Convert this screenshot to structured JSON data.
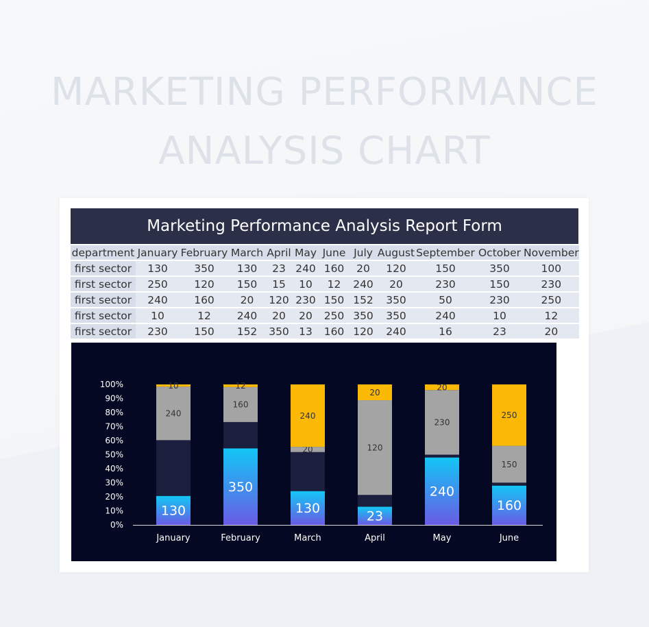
{
  "page_title_line1": "MARKETING PERFORMANCE",
  "page_title_line2": "ANALYSIS CHART",
  "report": {
    "title": "Marketing Performance Analysis Report Form",
    "columns": [
      "department",
      "January",
      "February",
      "March",
      "April",
      "May",
      "June",
      "July",
      "August",
      "September",
      "October",
      "November"
    ],
    "rows": [
      [
        "first sector",
        "130",
        "350",
        "130",
        "23",
        "240",
        "160",
        "20",
        "120",
        "150",
        "350",
        "100"
      ],
      [
        "first sector",
        "250",
        "120",
        "150",
        "15",
        "10",
        "12",
        "240",
        "20",
        "230",
        "150",
        "230"
      ],
      [
        "first sector",
        "240",
        "160",
        "20",
        "120",
        "230",
        "150",
        "152",
        "350",
        "50",
        "230",
        "250"
      ],
      [
        "first sector",
        "10",
        "12",
        "240",
        "20",
        "20",
        "250",
        "350",
        "350",
        "240",
        "10",
        "12"
      ],
      [
        "first sector",
        "230",
        "150",
        "152",
        "350",
        "13",
        "160",
        "120",
        "240",
        "16",
        "23",
        "20"
      ]
    ]
  },
  "chart_data": {
    "type": "bar",
    "stacked": "percent",
    "categories": [
      "January",
      "February",
      "March",
      "April",
      "May",
      "June"
    ],
    "series": [
      {
        "values": [
          130,
          350,
          130,
          23,
          240,
          160
        ],
        "color": "#1aa4f0",
        "labels": [
          "130",
          "350",
          "130",
          "23",
          "240",
          "160"
        ]
      },
      {
        "values": [
          250,
          120,
          150,
          15,
          10,
          12
        ],
        "color": "#1c1e3e",
        "labels": [
          "",
          "",
          "",
          "",
          "",
          ""
        ]
      },
      {
        "values": [
          240,
          160,
          20,
          120,
          230,
          150
        ],
        "color": "#a4a4a4",
        "labels": [
          "240",
          "160",
          "20",
          "120",
          "230",
          "150"
        ]
      },
      {
        "values": [
          10,
          12,
          240,
          20,
          20,
          250
        ],
        "color": "#fbb804",
        "labels": [
          "10",
          "12",
          "240",
          "20",
          "20",
          "250"
        ]
      }
    ],
    "yticks": [
      "0%",
      "10%",
      "20%",
      "30%",
      "40%",
      "50%",
      "60%",
      "70%",
      "80%",
      "90%",
      "100%"
    ],
    "ylim": [
      0,
      100
    ],
    "grid": false
  }
}
